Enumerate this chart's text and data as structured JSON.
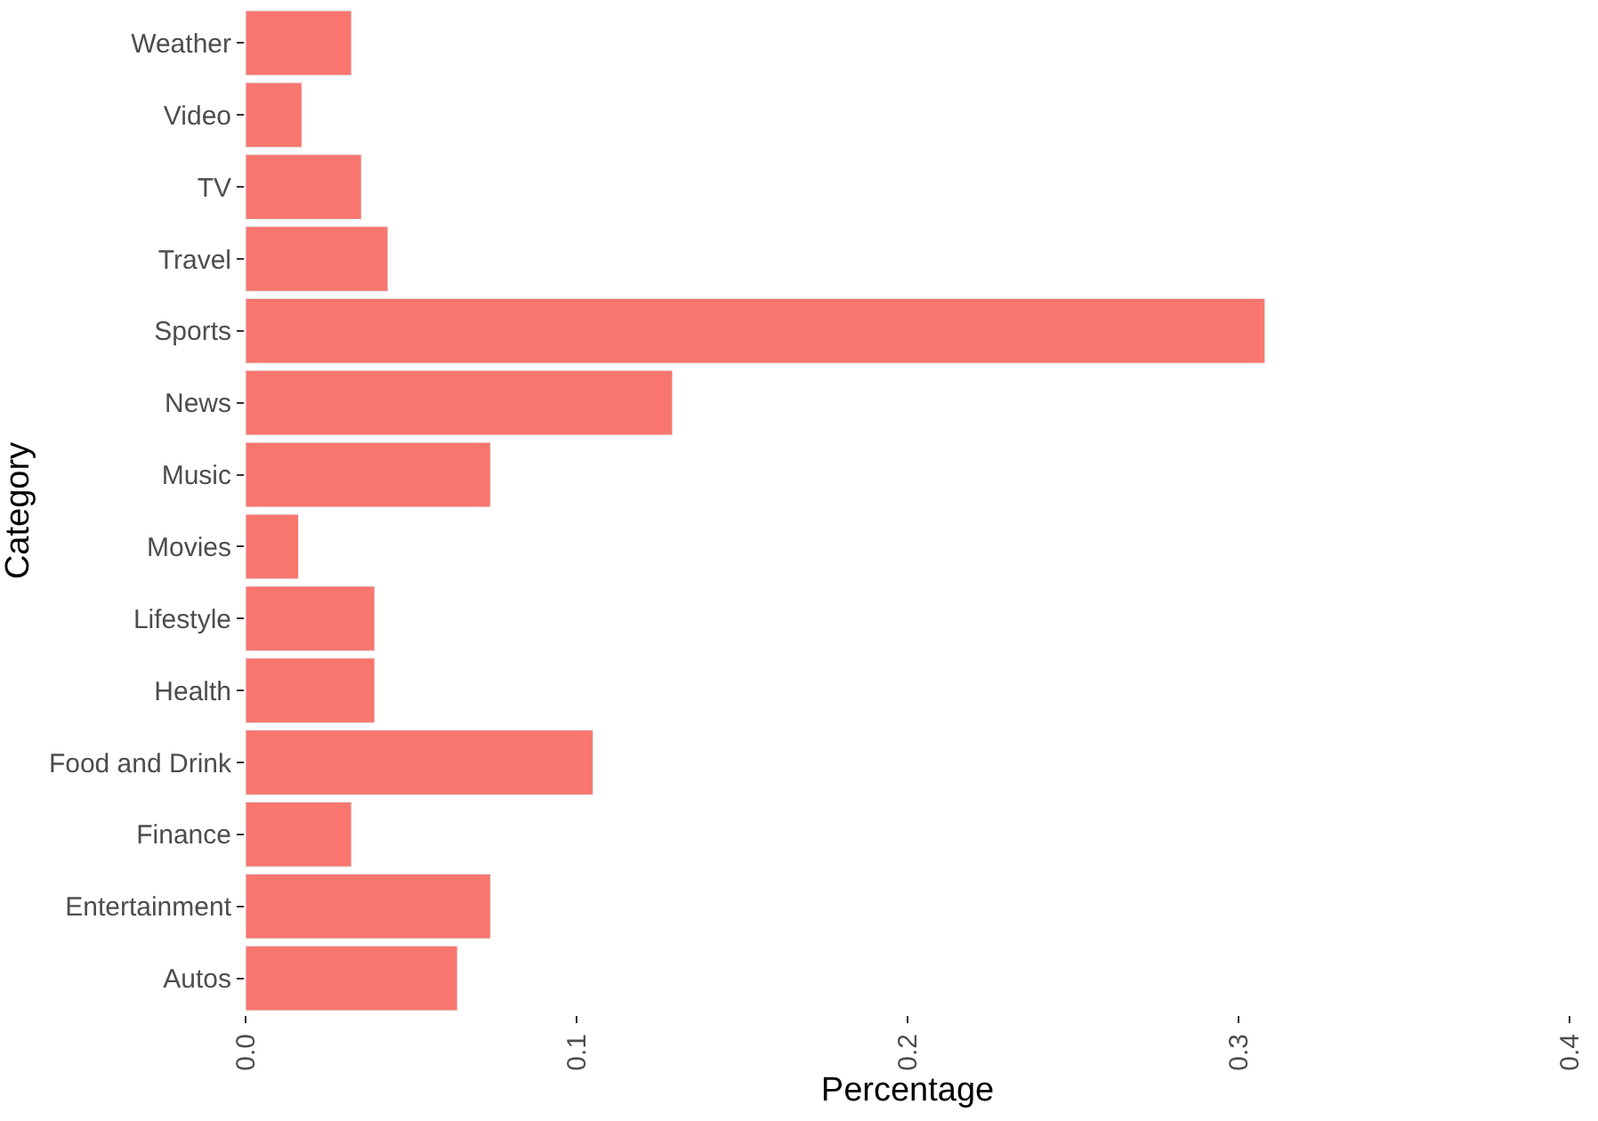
{
  "chart_data": {
    "type": "bar",
    "orientation": "horizontal",
    "xlabel": "Percentage",
    "ylabel": "Category",
    "categories": [
      "Weather",
      "Video",
      "TV",
      "Travel",
      "Sports",
      "News",
      "Music",
      "Movies",
      "Lifestyle",
      "Health",
      "Food and Drink",
      "Finance",
      "Entertainment",
      "Autos"
    ],
    "values": [
      0.032,
      0.017,
      0.035,
      0.043,
      0.308,
      0.129,
      0.074,
      0.016,
      0.039,
      0.039,
      0.105,
      0.032,
      0.074,
      0.064
    ],
    "color": "#f8766d",
    "xlim": [
      0,
      0.4
    ],
    "xticks": [
      {
        "value": 0,
        "label": "0.0"
      },
      0.1,
      0.2,
      0.3,
      0.4
    ],
    "legend": false
  }
}
